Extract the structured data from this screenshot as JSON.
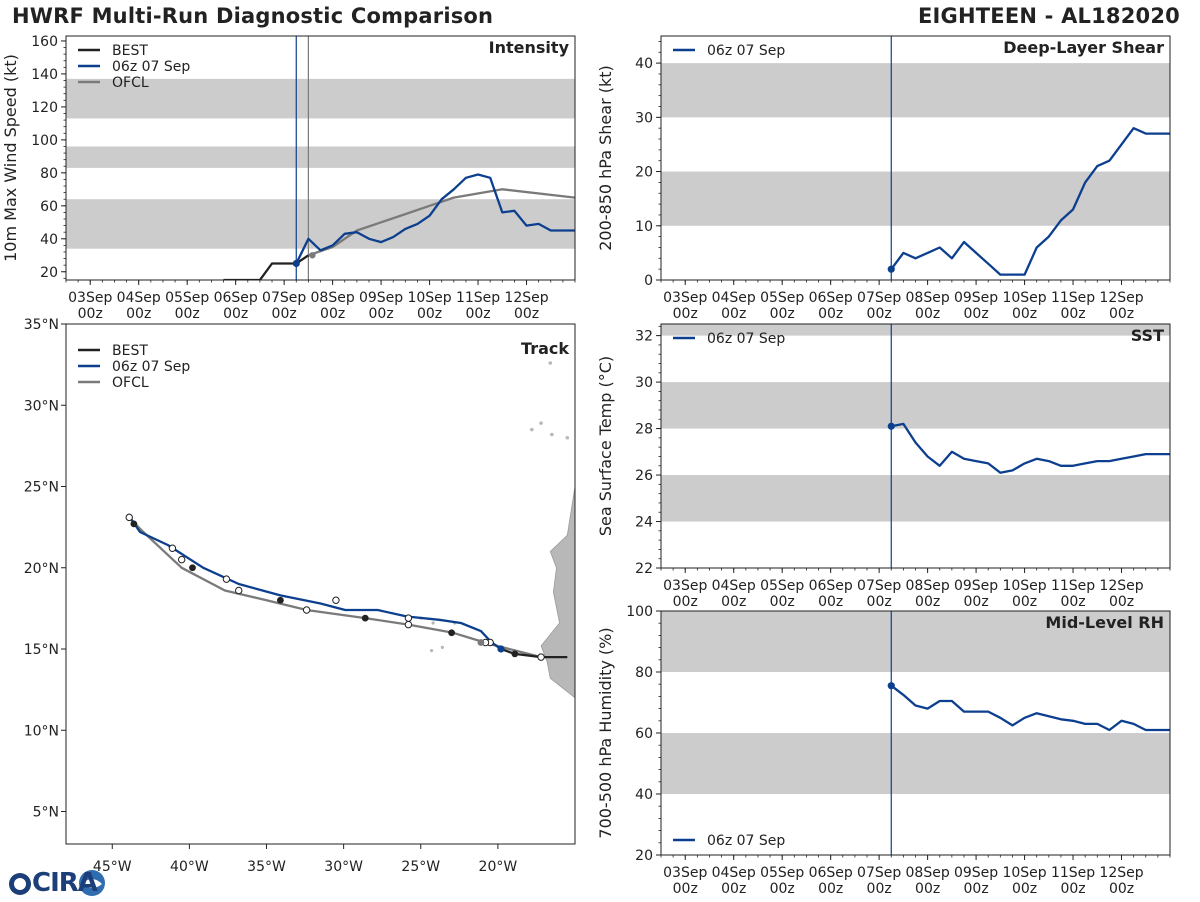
{
  "header": {
    "title_left": "HWRF Multi-Run Diagnostic Comparison",
    "title_right": "EIGHTEEN - AL182020"
  },
  "logo": {
    "text": "CIRA"
  },
  "colors": {
    "best": "#222222",
    "run": "#0d3f8f",
    "ofcl": "#7a7a7a",
    "band": "#cccccc"
  },
  "time_axis": {
    "ticks": [
      "03Sep\n00z",
      "04Sep\n00z",
      "05Sep\n00z",
      "06Sep\n00z",
      "07Sep\n00z",
      "08Sep\n00z",
      "09Sep\n00z",
      "10Sep\n00z",
      "11Sep\n00z",
      "12Sep\n00z"
    ],
    "xlim_hours": [
      -12,
      240
    ],
    "init_hour": 102
  },
  "chart_data": [
    {
      "type": "line",
      "id": "intensity",
      "title": "Intensity",
      "ylabel": "10m Max Wind Speed (kt)",
      "ylim": [
        15,
        163
      ],
      "yticks": [
        20,
        40,
        60,
        80,
        100,
        120,
        140,
        160
      ],
      "bands": [
        [
          34,
          64
        ],
        [
          83,
          96
        ],
        [
          113,
          137
        ]
      ],
      "legend": [
        "BEST",
        "06z 07 Sep",
        "OFCL"
      ],
      "best": {
        "x": [
          66,
          72,
          78,
          84,
          90,
          96,
          102,
          108
        ],
        "y": [
          15,
          15,
          15,
          15,
          25,
          25,
          25,
          30
        ]
      },
      "run": {
        "x": [
          102,
          108,
          114,
          120,
          126,
          132,
          138,
          144,
          150,
          156,
          162,
          168,
          174,
          180,
          186,
          192,
          198,
          204,
          210,
          216,
          222,
          228,
          234,
          240
        ],
        "y": [
          25,
          40,
          33,
          36,
          43,
          44,
          40,
          38,
          41,
          46,
          49,
          54,
          64,
          70,
          77,
          79,
          77,
          56,
          57,
          48,
          49,
          45,
          45,
          45
        ]
      },
      "ofcl": {
        "x": [
          108,
          120,
          132,
          144,
          156,
          168,
          180,
          204,
          240
        ],
        "y": [
          30,
          35,
          45,
          50,
          55,
          60,
          65,
          70,
          65
        ]
      },
      "vlines": [
        102,
        108
      ]
    },
    {
      "type": "line",
      "id": "shear",
      "title": "Deep-Layer Shear",
      "ylabel": "200-850 hPa Shear (kt)",
      "ylim": [
        0,
        45
      ],
      "yticks": [
        0,
        10,
        20,
        30,
        40
      ],
      "bands": [
        [
          10,
          20
        ],
        [
          30,
          40
        ]
      ],
      "legend": [
        "06z 07 Sep"
      ],
      "run": {
        "x": [
          102,
          108,
          114,
          120,
          126,
          132,
          138,
          144,
          150,
          156,
          162,
          168,
          174,
          180,
          186,
          192,
          198,
          204,
          210,
          216,
          222,
          228,
          234,
          240
        ],
        "y": [
          2,
          5,
          4,
          5,
          6,
          4,
          7,
          5,
          3,
          1,
          1,
          1,
          6,
          8,
          11,
          13,
          18,
          21,
          22,
          25,
          28,
          27,
          27,
          27
        ]
      },
      "vlines": [
        102
      ]
    },
    {
      "type": "line",
      "id": "sst",
      "title": "SST",
      "ylabel": "Sea Surface Temp (°C)",
      "ylim": [
        22,
        32.5
      ],
      "yticks": [
        22,
        24,
        26,
        28,
        30,
        32
      ],
      "bands": [
        [
          24,
          26
        ],
        [
          28,
          30
        ],
        [
          32,
          34
        ]
      ],
      "legend": [
        "06z 07 Sep"
      ],
      "run": {
        "x": [
          102,
          108,
          114,
          120,
          126,
          132,
          138,
          144,
          150,
          156,
          162,
          168,
          174,
          180,
          186,
          192,
          198,
          204,
          210,
          216,
          222,
          228,
          234,
          240
        ],
        "y": [
          28.1,
          28.2,
          27.4,
          26.8,
          26.4,
          27.0,
          26.7,
          26.6,
          26.5,
          26.1,
          26.2,
          26.5,
          26.7,
          26.6,
          26.4,
          26.4,
          26.5,
          26.6,
          26.6,
          26.7,
          26.8,
          26.9,
          26.9,
          26.9
        ]
      },
      "vlines": [
        102
      ]
    },
    {
      "type": "line",
      "id": "rh",
      "title": "Mid-Level RH",
      "ylabel": "700-500 hPa Humidity (%)",
      "ylim": [
        20,
        100
      ],
      "yticks": [
        20,
        40,
        60,
        80,
        100
      ],
      "bands": [
        [
          40,
          60
        ],
        [
          80,
          100
        ]
      ],
      "legend": [
        "06z 07 Sep"
      ],
      "run": {
        "x": [
          102,
          108,
          114,
          120,
          126,
          132,
          138,
          144,
          150,
          156,
          162,
          168,
          174,
          180,
          186,
          192,
          198,
          204,
          210,
          216,
          222,
          228,
          234,
          240
        ],
        "y": [
          75.5,
          72.5,
          69,
          68,
          70.5,
          70.5,
          67,
          67,
          67,
          65,
          62.5,
          65,
          66.5,
          65.5,
          64.5,
          64,
          63,
          63,
          61,
          64,
          63,
          61,
          61,
          61
        ]
      },
      "vlines": [
        102
      ]
    },
    {
      "type": "line",
      "id": "track",
      "title": "Track",
      "xlim": [
        -48,
        -15
      ],
      "ylim": [
        3,
        35
      ],
      "xticks": [
        -45,
        -40,
        -35,
        -30,
        -25,
        -20
      ],
      "xtick_labels": [
        "45°W",
        "40°W",
        "35°W",
        "30°W",
        "25°W",
        "20°W"
      ],
      "yticks": [
        5,
        10,
        15,
        20,
        25,
        30,
        35
      ],
      "ytick_labels": [
        "5°N",
        "10°N",
        "15°N",
        "20°N",
        "25°N",
        "30°N",
        "35°N"
      ],
      "legend": [
        "BEST",
        "06z 07 Sep",
        "OFCL"
      ],
      "best": {
        "lon": [
          -15.5,
          -17.2,
          -18.9,
          -19.8
        ],
        "lat": [
          14.5,
          14.5,
          14.7,
          15.0
        ]
      },
      "run": {
        "lon": [
          -19.8,
          -20.4,
          -21.1,
          -22.4,
          -23.8,
          -25.9,
          -27.8,
          -29.9,
          -31.5,
          -34.1,
          -36.8,
          -39.1,
          -41.4,
          -43.2,
          -44.0
        ],
        "lat": [
          15.0,
          15.4,
          16.1,
          16.6,
          16.8,
          17.0,
          17.4,
          17.4,
          17.8,
          18.3,
          19.0,
          20.0,
          21.4,
          22.2,
          23.3
        ]
      },
      "ofcl": {
        "lon": [
          -17.2,
          -20.5,
          -22.9,
          -25.8,
          -28.6,
          -32.4,
          -35.0,
          -37.7,
          -40.5,
          -43.1,
          -44.0
        ],
        "lat": [
          14.5,
          15.3,
          16.0,
          16.5,
          16.9,
          17.4,
          18.0,
          18.6,
          20.0,
          22.3,
          23.2
        ]
      },
      "best_markers": {
        "lon": [
          -18.9,
          -23.0,
          -28.6,
          -34.1,
          -39.8,
          -43.6
        ],
        "lat": [
          14.7,
          16.0,
          16.9,
          18.0,
          20.0,
          22.7
        ]
      },
      "open_markers": {
        "lon": [
          -17.2,
          -20.5,
          -25.8,
          -32.4,
          -36.8,
          -40.5,
          -43.9,
          -41.1,
          -37.6,
          -25.8,
          -30.5,
          -20.8
        ],
        "lat": [
          14.5,
          15.4,
          16.5,
          17.4,
          18.6,
          20.5,
          23.1,
          21.2,
          19.3,
          16.9,
          18.0,
          15.4
        ]
      }
    }
  ]
}
